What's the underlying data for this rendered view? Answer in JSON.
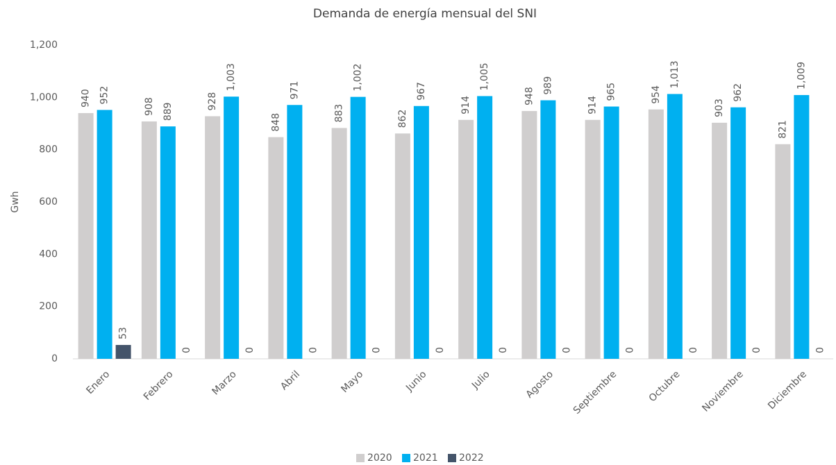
{
  "chart_data": {
    "type": "bar",
    "title": "Demanda de energía mensual del SNI",
    "y_label": "Gwh",
    "categories": [
      "Enero",
      "Febrero",
      "Marzo",
      "Abril",
      "Mayo",
      "Junio",
      "Julio",
      "Agosto",
      "Septiembre",
      "Octubre",
      "Noviembre",
      "Diciembre"
    ],
    "series": [
      {
        "name": "2020",
        "color": "#d0cece",
        "values": [
          940,
          908,
          928,
          848,
          883,
          862,
          914,
          948,
          914,
          954,
          903,
          821
        ]
      },
      {
        "name": "2021",
        "color": "#00b0f0",
        "values": [
          952,
          889,
          1003,
          971,
          1002,
          967,
          1005,
          989,
          965,
          1013,
          962,
          1009
        ],
        "value_labels": [
          "952",
          "889",
          "1,003",
          "971",
          "1,002",
          "967",
          "1,005",
          "989",
          "965",
          "1,013",
          "962",
          "1,009"
        ]
      },
      {
        "name": "2022",
        "color": "#44546a",
        "values": [
          53,
          0,
          0,
          0,
          0,
          0,
          0,
          0,
          0,
          0,
          0,
          0
        ]
      }
    ],
    "ylim": [
      0,
      1200
    ],
    "yticks": [
      0,
      200,
      400,
      600,
      800,
      {
        "value": 1000,
        "label": "1,000"
      },
      {
        "value": 1200,
        "label": "1,200"
      }
    ],
    "grid": false,
    "legend": "bottom"
  }
}
